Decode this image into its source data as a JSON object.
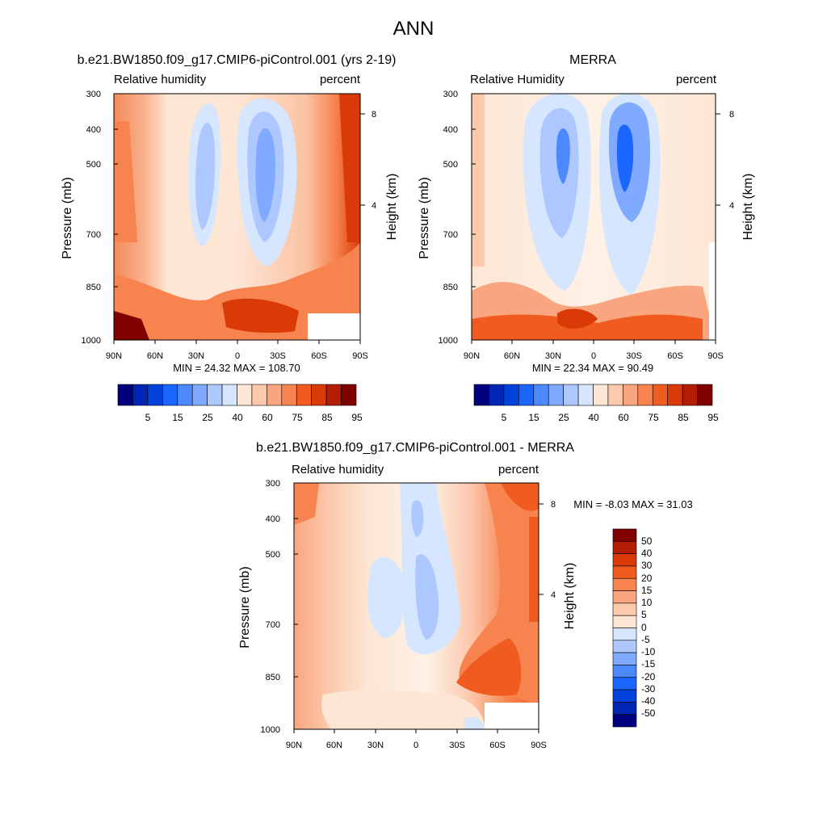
{
  "figure": {
    "title": "ANN"
  },
  "chart_data": [
    {
      "type": "heatmap",
      "title": "b.e21.BW1850.f09_g17.CMIP6-piControl.001 (yrs 2-19)",
      "field_label": "Relative humidity",
      "units": "percent",
      "ylabel": "Pressure (mb)",
      "ylabel_right": "Height (km)",
      "x_ticks": [
        "90N",
        "60N",
        "30N",
        "0",
        "30S",
        "60S",
        "90S"
      ],
      "x_range": [
        90,
        -90
      ],
      "y_ticks": [
        "300",
        "400",
        "500",
        "700",
        "850",
        "1000"
      ],
      "y_range_mb": [
        1000,
        300
      ],
      "y_log_scale": true,
      "height_ticks": [
        "4",
        "8"
      ],
      "min_max_text": "MIN =  24.32  MAX = 108.70",
      "min": 24.32,
      "max": 108.7,
      "colorbar": {
        "labels": [
          "5",
          "15",
          "25",
          "40",
          "60",
          "75",
          "85",
          "95"
        ],
        "colors": [
          "#00007f",
          "#0026b3",
          "#0042db",
          "#1a66ff",
          "#4d88ff",
          "#80aaff",
          "#adc8ff",
          "#d7e6ff",
          "#fde6d4",
          "#fcc9ad",
          "#f9a680",
          "#f7834f",
          "#f05b20",
          "#da3a08",
          "#b41d03",
          "#800000"
        ]
      }
    },
    {
      "type": "heatmap",
      "title": "MERRA",
      "field_label": "Relative Humidity",
      "units": "percent",
      "ylabel": "Pressure (mb)",
      "ylabel_right": "Height (km)",
      "x_ticks": [
        "90N",
        "60N",
        "30N",
        "0",
        "30S",
        "60S",
        "90S"
      ],
      "x_range": [
        90,
        -90
      ],
      "y_ticks": [
        "300",
        "400",
        "500",
        "700",
        "850",
        "1000"
      ],
      "y_range_mb": [
        1000,
        300
      ],
      "y_log_scale": true,
      "height_ticks": [
        "4",
        "8"
      ],
      "min_max_text": "MIN =  22.34  MAX =  90.49",
      "min": 22.34,
      "max": 90.49,
      "colorbar": {
        "labels": [
          "5",
          "15",
          "25",
          "40",
          "60",
          "75",
          "85",
          "95"
        ],
        "colors": [
          "#00007f",
          "#0026b3",
          "#0042db",
          "#1a66ff",
          "#4d88ff",
          "#80aaff",
          "#adc8ff",
          "#d7e6ff",
          "#fde6d4",
          "#fcc9ad",
          "#f9a680",
          "#f7834f",
          "#f05b20",
          "#da3a08",
          "#b41d03",
          "#800000"
        ]
      }
    },
    {
      "type": "heatmap",
      "title": "b.e21.BW1850.f09_g17.CMIP6-piControl.001 - MERRA",
      "field_label": "Relative humidity",
      "units": "percent",
      "ylabel": "Pressure (mb)",
      "ylabel_right": "Height (km)",
      "x_ticks": [
        "90N",
        "60N",
        "30N",
        "0",
        "30S",
        "60S",
        "90S"
      ],
      "x_range": [
        90,
        -90
      ],
      "y_ticks": [
        "300",
        "400",
        "500",
        "700",
        "850",
        "1000"
      ],
      "y_range_mb": [
        1000,
        300
      ],
      "y_log_scale": true,
      "height_ticks": [
        "4",
        "8"
      ],
      "min_max_text": "MIN =  -8.03  MAX =  31.03",
      "min": -8.03,
      "max": 31.03,
      "colorbar": {
        "labels": [
          "50",
          "40",
          "30",
          "20",
          "15",
          "10",
          "5",
          "0",
          "-5",
          "-10",
          "-15",
          "-20",
          "-30",
          "-40",
          "-50"
        ],
        "colors": [
          "#800000",
          "#b41d03",
          "#da3a08",
          "#f05b20",
          "#f7834f",
          "#f9a680",
          "#fcc9ad",
          "#fde6d4",
          "#d7e6ff",
          "#adc8ff",
          "#80aaff",
          "#4d88ff",
          "#1a66ff",
          "#0042db",
          "#0026b3",
          "#00007f"
        ]
      }
    }
  ]
}
